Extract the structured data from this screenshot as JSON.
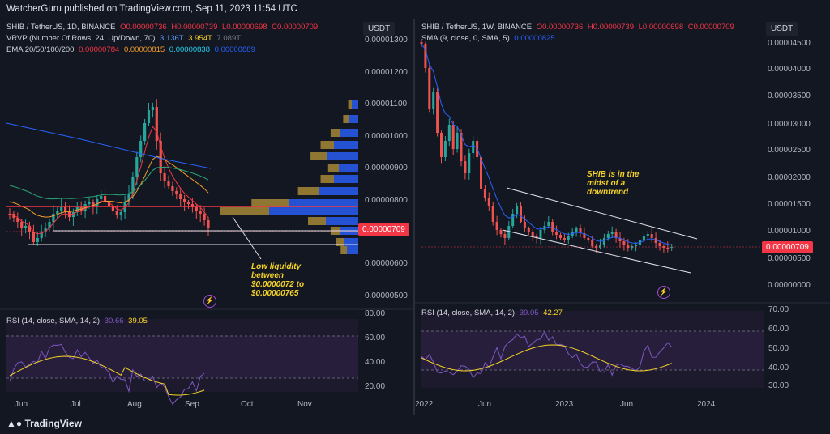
{
  "header": {
    "title": "WatcherGuru published on TradingView.com, Sep 11, 2023 11:54 UTC"
  },
  "left": {
    "symbol_line": {
      "name": "SHIB / TetherUS, 1D, BINANCE",
      "o": "O0.00000736",
      "h": "H0.00000739",
      "l": "L0.00000698",
      "c": "C0.00000709"
    },
    "vrvp_line": {
      "name": "VRVP (Number Of Rows, 24, Up/Down, 70)",
      "v1": "3.136T",
      "v2": "3.954T",
      "v3": "7.089T"
    },
    "ema_line": {
      "name": "EMA 20/50/100/200",
      "e1": "0.00000784",
      "e2": "0.00000815",
      "e3": "0.00000838",
      "e4": "0.00000889"
    },
    "rsi_line": {
      "name": "RSI (14, close, SMA, 14, 2)",
      "v1": "30.66",
      "v2": "39.05"
    },
    "currency": "USDT",
    "price_tag": "0.00000709",
    "y_labels": [
      "0.00001300",
      "0.00001200",
      "0.00001100",
      "0.00001000",
      "0.00000900",
      "0.00000800",
      "0.00000600",
      "0.00000500"
    ],
    "rsi_labels": [
      "80.00",
      "60.00",
      "40.00",
      "20.00"
    ],
    "x_labels": [
      "Jun",
      "Jul",
      "Aug",
      "Sep",
      "Oct",
      "Nov"
    ],
    "annotation": [
      "Low liquidity",
      "between",
      "$0.0000072 to",
      "$0.00000765"
    ]
  },
  "right": {
    "symbol_line": {
      "name": "SHIB / TetherUS, 1W, BINANCE",
      "o": "O0.00000736",
      "h": "H0.00000739",
      "l": "L0.00000698",
      "c": "C0.00000709"
    },
    "sma_line": {
      "name": "SMA (9, close, 0, SMA, 5)",
      "v1": "0.00000825"
    },
    "rsi_line": {
      "name": "RSI (14, close, SMA, 14, 2)",
      "v1": "39.05",
      "v2": "42.27"
    },
    "currency": "USDT",
    "price_tag": "0.00000709",
    "y_labels": [
      "0.00004500",
      "0.00004000",
      "0.00003500",
      "0.00003000",
      "0.00002500",
      "0.00002000",
      "0.00001500",
      "0.00001000",
      "0.00000500",
      "0.00000000"
    ],
    "rsi_labels": [
      "70.00",
      "60.00",
      "50.00",
      "40.00",
      "30.00"
    ],
    "x_labels": [
      "2022",
      "Jun",
      "2023",
      "Jun",
      "2024"
    ],
    "annotation": [
      "SHIB is in the",
      "midst of a",
      "downtrend"
    ]
  },
  "footer": {
    "logo_text": "TradingView"
  },
  "colors": {
    "up": "#26a69a",
    "down": "#ef5350",
    "bg": "#131722",
    "rsi": "#7e57c2",
    "rsi_ma": "#f5d327",
    "ema20": "#f23645",
    "ema50": "#f59c2b",
    "ema100": "#1fa67a",
    "ema200": "#2962ff"
  }
}
